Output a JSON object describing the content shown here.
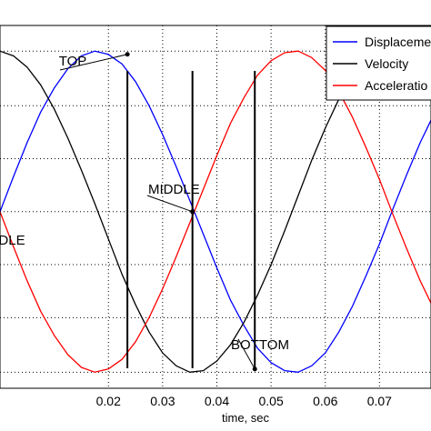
{
  "chart_data": {
    "type": "line",
    "title": "",
    "xlabel": "time, sec",
    "ylabel": "",
    "xlim": [
      0.0,
      0.0795
    ],
    "ylim": [
      -1.1,
      1.16
    ],
    "xticks": [
      0.02,
      0.03,
      0.04,
      0.05,
      0.06,
      0.07
    ],
    "xtick_labels": [
      "0.02",
      "0.03",
      "0.04",
      "0.05",
      "0.06",
      "0.07"
    ],
    "yticks": [
      -1.0,
      -0.66,
      -0.33,
      0.0,
      0.33,
      0.66,
      1.0
    ],
    "grid": true,
    "legend_position": "top-right",
    "series": [
      {
        "name": "Displacement",
        "legend_label": "Displaceme",
        "color": "#0000ff",
        "x": [
          0.0,
          0.0025,
          0.005,
          0.0075,
          0.01,
          0.0125,
          0.015,
          0.0175,
          0.02,
          0.0225,
          0.025,
          0.0275,
          0.03,
          0.0325,
          0.035,
          0.0375,
          0.04,
          0.0425,
          0.045,
          0.0475,
          0.05,
          0.0525,
          0.055,
          0.0575,
          0.06,
          0.0625,
          0.065,
          0.0675,
          0.07,
          0.0725,
          0.075,
          0.0775,
          0.0795
        ],
        "y": [
          0.0,
          0.22,
          0.43,
          0.62,
          0.77,
          0.89,
          0.97,
          1.0,
          0.98,
          0.92,
          0.81,
          0.66,
          0.48,
          0.28,
          0.07,
          -0.14,
          -0.35,
          -0.55,
          -0.71,
          -0.85,
          -0.94,
          -0.99,
          -1.0,
          -0.96,
          -0.88,
          -0.75,
          -0.59,
          -0.4,
          -0.2,
          0.02,
          0.23,
          0.43,
          0.57
        ]
      },
      {
        "name": "Velocity",
        "legend_label": "Velocity",
        "color": "#000000",
        "x": [
          0.0,
          0.0025,
          0.005,
          0.0075,
          0.01,
          0.0125,
          0.015,
          0.0175,
          0.02,
          0.0225,
          0.025,
          0.0275,
          0.03,
          0.0325,
          0.035,
          0.0375,
          0.04,
          0.0425,
          0.045,
          0.0475,
          0.05,
          0.0525,
          0.055,
          0.0575,
          0.06,
          0.0625,
          0.065,
          0.0675,
          0.07,
          0.0725,
          0.075,
          0.0775,
          0.0795
        ],
        "y": [
          1.0,
          0.97,
          0.9,
          0.79,
          0.64,
          0.46,
          0.26,
          0.05,
          -0.17,
          -0.39,
          -0.58,
          -0.75,
          -0.88,
          -0.96,
          -1.0,
          -0.99,
          -0.93,
          -0.83,
          -0.69,
          -0.52,
          -0.33,
          -0.12,
          0.1,
          0.32,
          0.52,
          0.7,
          0.84,
          0.94,
          0.99,
          1.0,
          0.95,
          0.86,
          0.77
        ]
      },
      {
        "name": "Acceleration",
        "legend_label": "Acceleratio",
        "color": "#ff0000",
        "x": [
          0.0,
          0.0025,
          0.005,
          0.0075,
          0.01,
          0.0125,
          0.015,
          0.0175,
          0.02,
          0.0225,
          0.025,
          0.0275,
          0.03,
          0.0325,
          0.035,
          0.0375,
          0.04,
          0.0425,
          0.045,
          0.0475,
          0.05,
          0.0525,
          0.055,
          0.0575,
          0.06,
          0.0625,
          0.065,
          0.0675,
          0.07,
          0.0725,
          0.075,
          0.0775,
          0.0795
        ],
        "y": [
          0.0,
          -0.22,
          -0.43,
          -0.62,
          -0.77,
          -0.89,
          -0.97,
          -1.0,
          -0.98,
          -0.92,
          -0.81,
          -0.66,
          -0.48,
          -0.28,
          -0.07,
          0.14,
          0.35,
          0.55,
          0.71,
          0.85,
          0.94,
          0.99,
          1.0,
          0.96,
          0.88,
          0.75,
          0.59,
          0.4,
          0.2,
          -0.02,
          -0.23,
          -0.43,
          -0.57
        ]
      }
    ],
    "vertical_lines": [
      0.0235,
      0.0355,
      0.047
    ],
    "annotations": [
      {
        "text": "TOP",
        "x": 0.0235,
        "y": 0.98
      },
      {
        "text": "MIDDLE",
        "x": 0.0355,
        "y": 0.0
      },
      {
        "text": "BOTTOM",
        "x": 0.047,
        "y": -0.98
      },
      {
        "text": "DLE",
        "x": 0.0,
        "y": 0.0
      }
    ]
  }
}
